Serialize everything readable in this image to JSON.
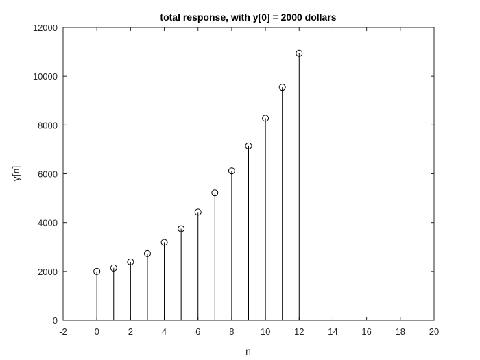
{
  "chart_data": {
    "type": "stem",
    "title": "total response, with y[0] = 2000 dollars",
    "xlabel": "n",
    "ylabel": "y[n]",
    "xlim": [
      -2,
      20
    ],
    "ylim": [
      0,
      12000
    ],
    "x_ticks": [
      "-2",
      "0",
      "2",
      "4",
      "6",
      "8",
      "10",
      "12",
      "14",
      "16",
      "18",
      "20"
    ],
    "y_ticks": [
      "0",
      "2000",
      "4000",
      "6000",
      "8000",
      "10000",
      "12000"
    ],
    "grid": false,
    "x": [
      0,
      1,
      2,
      3,
      4,
      5,
      6,
      7,
      8,
      9,
      10,
      11,
      12
    ],
    "y": [
      2000,
      2140,
      2390,
      2730,
      3190,
      3750,
      4430,
      5220,
      6120,
      7140,
      8280,
      9550,
      10940
    ],
    "marker": "open-circle",
    "colors": {
      "stem": "#000000",
      "axes": "#262626",
      "background": "#ffffff"
    }
  }
}
